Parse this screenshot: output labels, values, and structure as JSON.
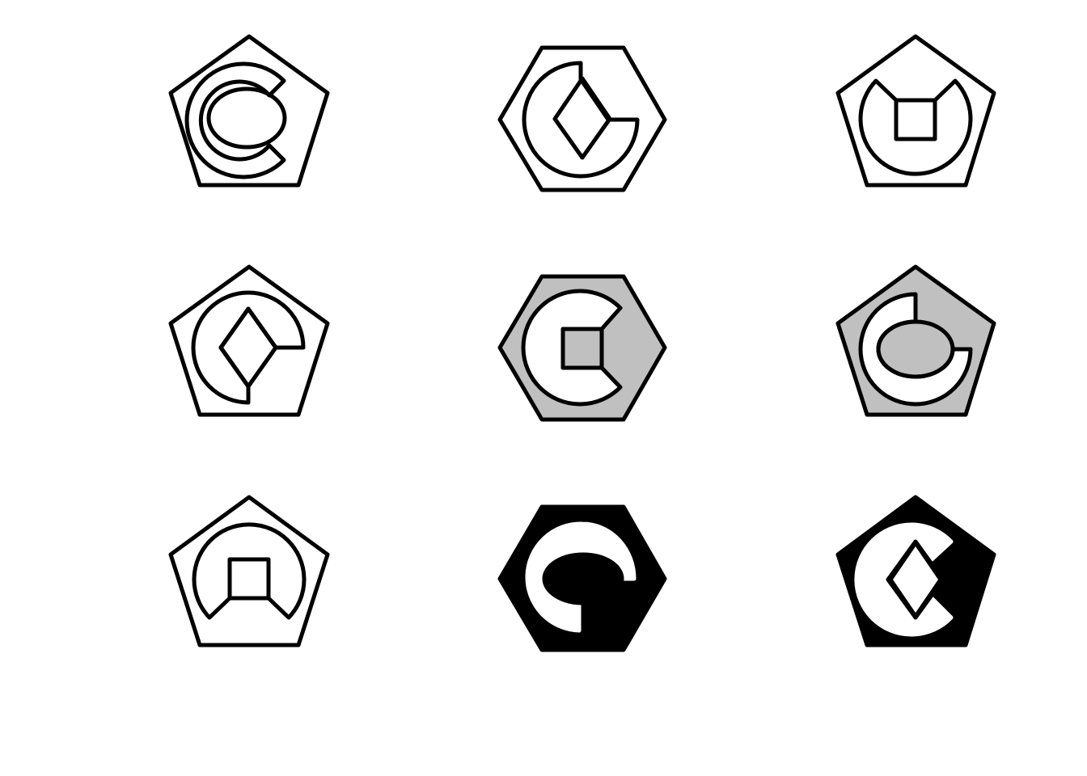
{
  "colors": {
    "background": "#ffffff",
    "stroke": "#000000",
    "white": "#ffffff",
    "gray": "#c0c0c0",
    "black": "#000000"
  },
  "puzzle": {
    "rows": 3,
    "cols": 3,
    "cells": [
      {
        "row": 1,
        "col": 1,
        "outer": "pentagon",
        "fill": "white",
        "ring_gap": "right",
        "inner": "ellipse"
      },
      {
        "row": 1,
        "col": 2,
        "outer": "hexagon",
        "fill": "white",
        "ring_gap": "top-right",
        "inner": "diamond"
      },
      {
        "row": 1,
        "col": 3,
        "outer": "pentagon",
        "fill": "white",
        "ring_gap": "top",
        "inner": "square"
      },
      {
        "row": 2,
        "col": 1,
        "outer": "pentagon",
        "fill": "white",
        "ring_gap": "top-right",
        "inner": "diamond"
      },
      {
        "row": 2,
        "col": 2,
        "outer": "hexagon",
        "fill": "gray",
        "ring_gap": "right",
        "inner": "square"
      },
      {
        "row": 2,
        "col": 3,
        "outer": "pentagon",
        "fill": "gray",
        "ring_gap": "top-right",
        "inner": "ellipse"
      },
      {
        "row": 3,
        "col": 1,
        "outer": "pentagon",
        "fill": "white",
        "ring_gap": "bottom",
        "inner": "square"
      },
      {
        "row": 3,
        "col": 2,
        "outer": "hexagon",
        "fill": "black",
        "ring_gap": "bottom-right",
        "inner": "ellipse"
      },
      {
        "row": 3,
        "col": 3,
        "outer": "pentagon",
        "fill": "black",
        "ring_gap": "right",
        "inner": "diamond"
      }
    ]
  }
}
